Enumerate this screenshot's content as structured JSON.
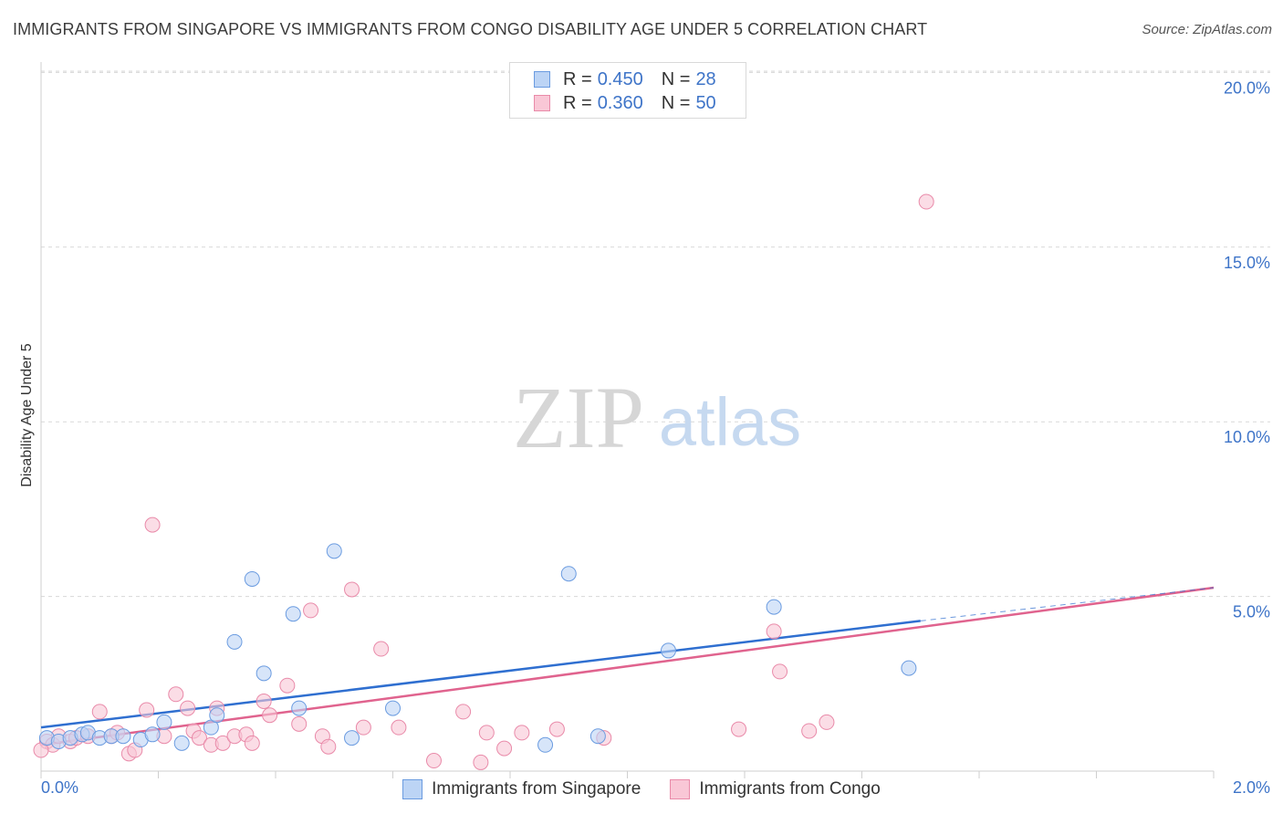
{
  "title": "IMMIGRANTS FROM SINGAPORE VS IMMIGRANTS FROM CONGO DISABILITY AGE UNDER 5 CORRELATION CHART",
  "source": "Source: ZipAtlas.com",
  "watermark": {
    "zip": "ZIP",
    "atlas": "atlas"
  },
  "legend_top": {
    "rows": [
      {
        "r_label": "R =",
        "r_value": "0.450",
        "n_label": "N =",
        "n_value": "28"
      },
      {
        "r_label": "R =",
        "r_value": "0.360",
        "n_label": "N =",
        "n_value": "50"
      }
    ]
  },
  "legend_bottom": {
    "singapore": "Immigrants from Singapore",
    "congo": "Immigrants from Congo"
  },
  "colors": {
    "singapore_fill": "#bcd4f5",
    "singapore_stroke": "#6a9be0",
    "singapore_line": "#2f6fd0",
    "congo_fill": "#f9c7d6",
    "congo_stroke": "#e98aa9",
    "congo_line": "#e0638e",
    "tick_label": "#3e74c8",
    "grid": "#d8d8d8"
  },
  "chart_data": {
    "type": "scatter",
    "title": "IMMIGRANTS FROM SINGAPORE VS IMMIGRANTS FROM CONGO DISABILITY AGE UNDER 5 CORRELATION CHART",
    "xlabel": "",
    "ylabel": "Disability Age Under 5",
    "xlim": [
      0,
      2.0
    ],
    "ylim": [
      0,
      20.5
    ],
    "x_tick_labels": [
      "0.0%",
      "2.0%"
    ],
    "y_ticks": [
      5,
      10,
      15,
      20
    ],
    "y_tick_labels": [
      "5.0%",
      "10.0%",
      "15.0%",
      "20.0%"
    ],
    "grid": "horizontal dashed",
    "series": [
      {
        "name": "Immigrants from Singapore",
        "r": 0.45,
        "n": 28,
        "trend": {
          "x0": 0.0,
          "y0": 1.25,
          "x1": 1.5,
          "y1": 4.3,
          "dashed_to_x": 2.0,
          "dashed_to_y": 5.25
        },
        "points": [
          [
            0.01,
            0.95
          ],
          [
            0.03,
            0.85
          ],
          [
            0.05,
            0.95
          ],
          [
            0.07,
            1.05
          ],
          [
            0.08,
            1.1
          ],
          [
            0.1,
            0.95
          ],
          [
            0.12,
            1.0
          ],
          [
            0.14,
            1.0
          ],
          [
            0.17,
            0.9
          ],
          [
            0.19,
            1.05
          ],
          [
            0.21,
            1.4
          ],
          [
            0.24,
            0.8
          ],
          [
            0.29,
            1.25
          ],
          [
            0.3,
            1.6
          ],
          [
            0.33,
            3.7
          ],
          [
            0.36,
            5.5
          ],
          [
            0.38,
            2.8
          ],
          [
            0.43,
            4.5
          ],
          [
            0.44,
            1.8
          ],
          [
            0.5,
            6.3
          ],
          [
            0.53,
            0.95
          ],
          [
            0.6,
            1.8
          ],
          [
            0.86,
            0.75
          ],
          [
            0.9,
            5.65
          ],
          [
            0.95,
            1.0
          ],
          [
            1.07,
            3.45
          ],
          [
            1.25,
            4.7
          ],
          [
            1.48,
            2.95
          ]
        ]
      },
      {
        "name": "Immigrants from Congo",
        "r": 0.36,
        "n": 50,
        "trend": {
          "x0": 0.0,
          "y0": 0.75,
          "x1": 2.0,
          "y1": 5.25
        },
        "points": [
          [
            0.01,
            0.85
          ],
          [
            0.02,
            0.75
          ],
          [
            0.03,
            1.0
          ],
          [
            0.05,
            0.85
          ],
          [
            0.06,
            0.95
          ],
          [
            0.08,
            1.0
          ],
          [
            0.1,
            1.7
          ],
          [
            0.12,
            1.0
          ],
          [
            0.13,
            1.1
          ],
          [
            0.15,
            0.5
          ],
          [
            0.16,
            0.6
          ],
          [
            0.18,
            1.75
          ],
          [
            0.19,
            7.05
          ],
          [
            0.21,
            1.0
          ],
          [
            0.23,
            2.2
          ],
          [
            0.25,
            1.8
          ],
          [
            0.26,
            1.15
          ],
          [
            0.27,
            0.95
          ],
          [
            0.29,
            0.75
          ],
          [
            0.3,
            1.8
          ],
          [
            0.31,
            0.8
          ],
          [
            0.33,
            1.0
          ],
          [
            0.35,
            1.05
          ],
          [
            0.36,
            0.8
          ],
          [
            0.38,
            2.0
          ],
          [
            0.39,
            1.6
          ],
          [
            0.42,
            2.45
          ],
          [
            0.44,
            1.35
          ],
          [
            0.46,
            4.6
          ],
          [
            0.48,
            1.0
          ],
          [
            0.49,
            0.7
          ],
          [
            0.53,
            5.2
          ],
          [
            0.55,
            1.25
          ],
          [
            0.58,
            3.5
          ],
          [
            0.61,
            1.25
          ],
          [
            0.67,
            0.3
          ],
          [
            0.72,
            1.7
          ],
          [
            0.75,
            0.25
          ],
          [
            0.76,
            1.1
          ],
          [
            0.79,
            0.65
          ],
          [
            0.82,
            1.1
          ],
          [
            0.88,
            1.2
          ],
          [
            0.96,
            0.95
          ],
          [
            1.19,
            1.2
          ],
          [
            1.25,
            4.0
          ],
          [
            1.26,
            2.85
          ],
          [
            1.31,
            1.15
          ],
          [
            1.34,
            1.4
          ],
          [
            1.51,
            16.3
          ],
          [
            0.0,
            0.6
          ]
        ]
      }
    ]
  }
}
